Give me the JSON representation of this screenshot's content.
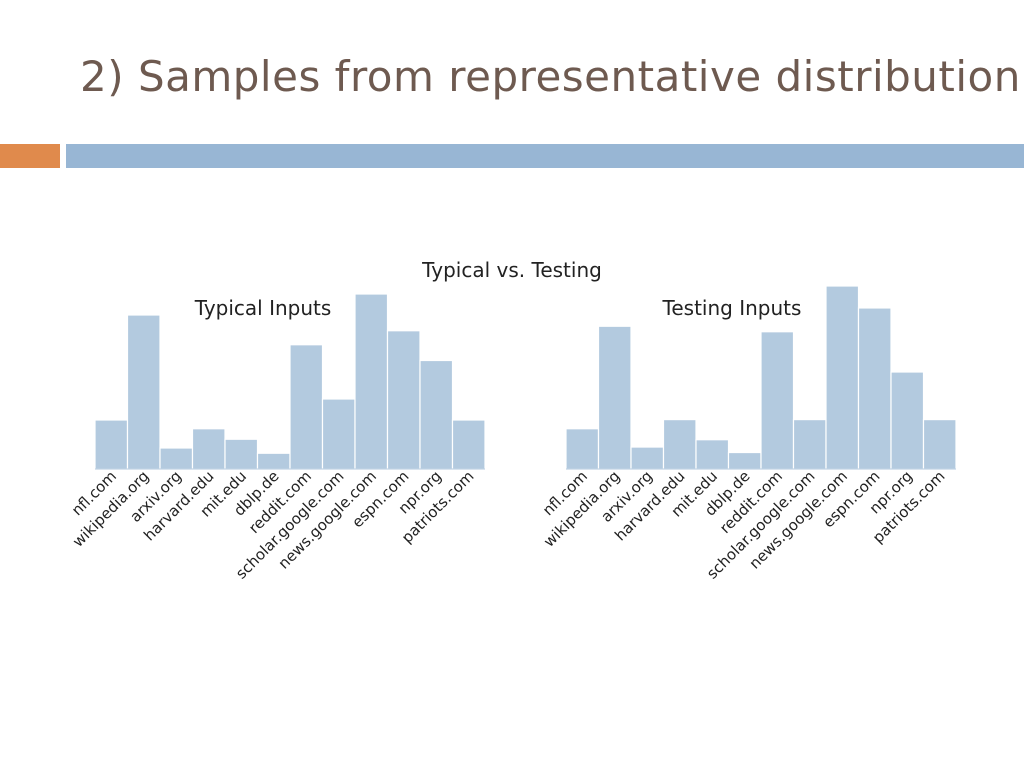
{
  "slide": {
    "title": "2) Samples from representative distribution",
    "accent_color": "#e08a4c",
    "band_color": "#98b6d4"
  },
  "chart_title": "Typical vs. Testing",
  "bar_color": "#b3cadf",
  "chart_data": [
    {
      "type": "bar",
      "title": "Typical Inputs",
      "categories": [
        "nfl.com",
        "wikipedia.org",
        "arxiv.org",
        "harvard.edu",
        "mit.edu",
        "dblp.de",
        "reddit.com",
        "scholar.google.com",
        "news.google.com",
        "espn.com",
        "npr.org",
        "patriots.com"
      ],
      "values": [
        0.28,
        0.88,
        0.12,
        0.23,
        0.17,
        0.09,
        0.71,
        0.4,
        1.0,
        0.79,
        0.62,
        0.28
      ],
      "xlabel": "",
      "ylabel": "",
      "ylim": [
        0,
        1
      ],
      "grid": false
    },
    {
      "type": "bar",
      "title": "Testing Inputs",
      "categories": [
        "nfl.com",
        "wikipedia.org",
        "arxiv.org",
        "harvard.edu",
        "mit.edu",
        "dblp.de",
        "reddit.com",
        "scholar.google.com",
        "news.google.com",
        "espn.com",
        "npr.org",
        "patriots.com"
      ],
      "values": [
        0.22,
        0.78,
        0.12,
        0.27,
        0.16,
        0.09,
        0.75,
        0.27,
        1.0,
        0.88,
        0.53,
        0.27
      ],
      "xlabel": "",
      "ylabel": "",
      "ylim": [
        0,
        1
      ],
      "grid": false
    }
  ]
}
